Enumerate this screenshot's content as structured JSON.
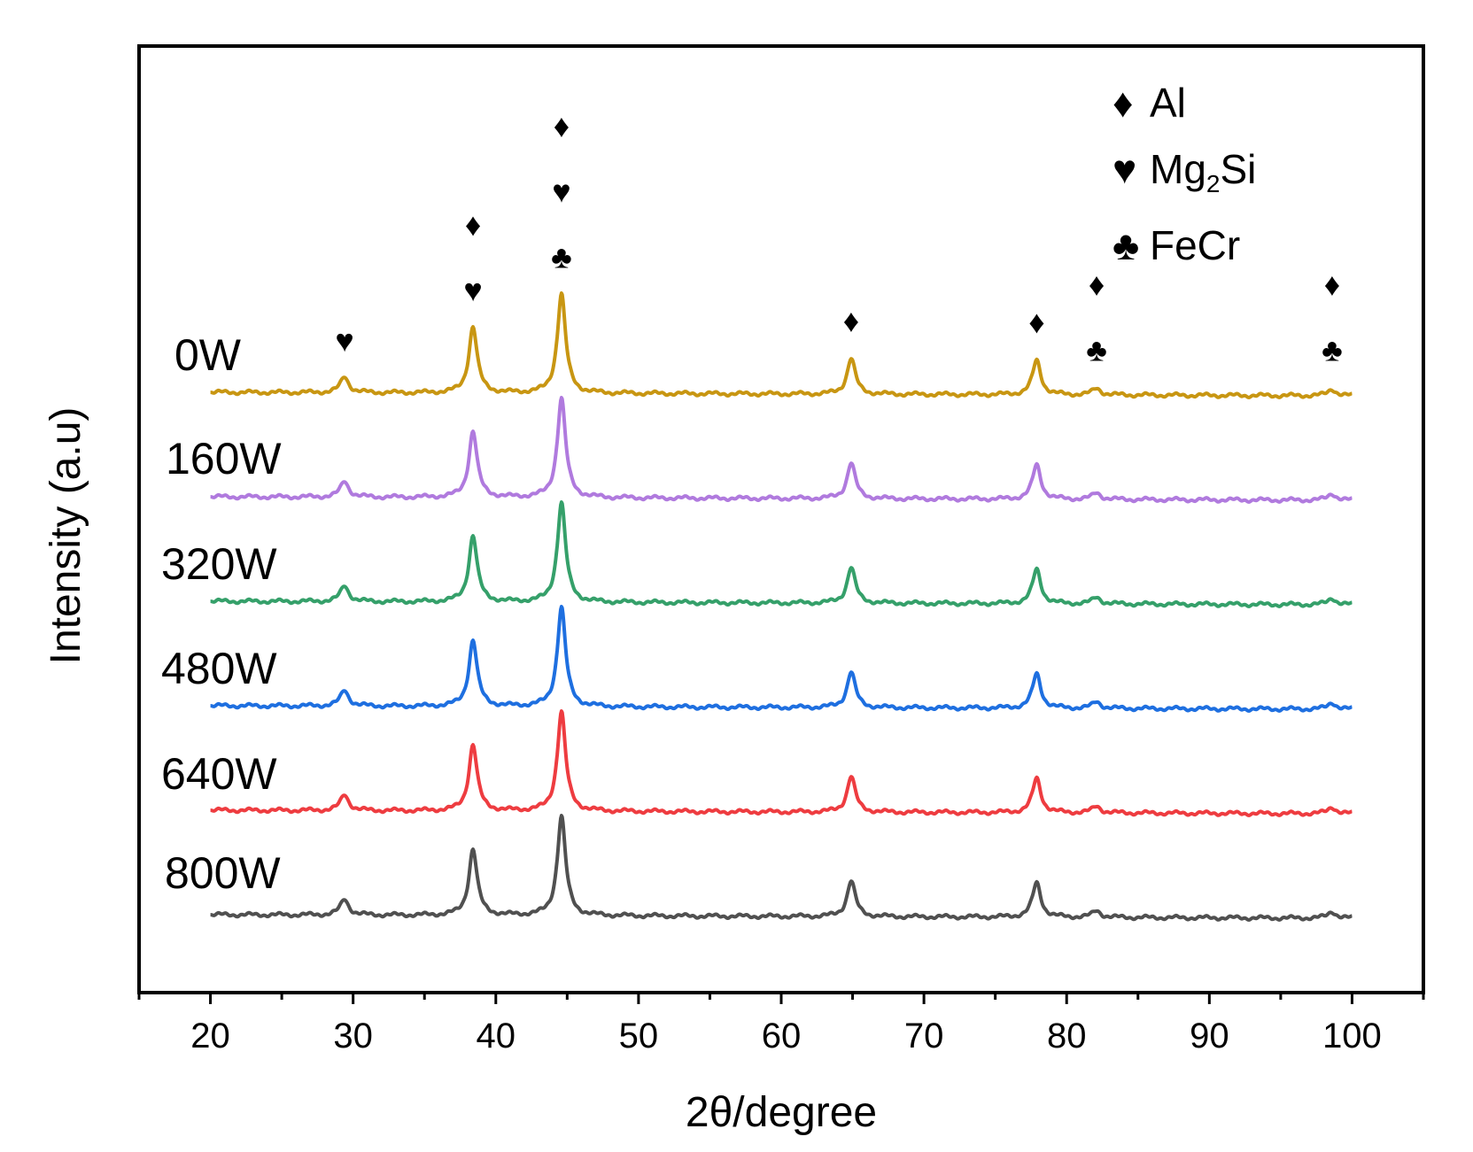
{
  "chart_data": {
    "type": "line",
    "title": "",
    "xlabel": "2θ/degree",
    "ylabel": "Intensity  (a.u)",
    "xlim": [
      15,
      105
    ],
    "x_ticks": [
      20,
      30,
      40,
      50,
      60,
      70,
      80,
      90,
      100
    ],
    "y_ticks_shown": false,
    "grid": false,
    "peaks": [
      {
        "pos": 29.4,
        "height": 0.12
      },
      {
        "pos": 38.4,
        "height": 0.5
      },
      {
        "pos": 44.6,
        "height": 0.75
      },
      {
        "pos": 64.9,
        "height": 0.27
      },
      {
        "pos": 77.9,
        "height": 0.26
      },
      {
        "pos": 82.1,
        "height": 0.05
      },
      {
        "pos": 98.6,
        "height": 0.05
      }
    ],
    "series": [
      {
        "name": "0W",
        "color": "#C89612",
        "offset": 5
      },
      {
        "name": "160W",
        "color": "#B07ADE",
        "offset": 4
      },
      {
        "name": "320W",
        "color": "#35A06A",
        "offset": 3
      },
      {
        "name": "480W",
        "color": "#1E6FE0",
        "offset": 2
      },
      {
        "name": "640W",
        "color": "#EE3C40",
        "offset": 1
      },
      {
        "name": "800W",
        "color": "#505050",
        "offset": 0
      }
    ],
    "phase_markers": [
      {
        "x": 29.4,
        "stack": [
          "heart"
        ]
      },
      {
        "x": 38.4,
        "stack": [
          "diamond",
          "heart"
        ]
      },
      {
        "x": 44.6,
        "stack": [
          "diamond",
          "heart",
          "club"
        ]
      },
      {
        "x": 64.9,
        "stack": [
          "diamond"
        ]
      },
      {
        "x": 77.9,
        "stack": [
          "diamond"
        ]
      },
      {
        "x": 82.1,
        "stack": [
          "diamond",
          "club"
        ]
      },
      {
        "x": 98.6,
        "stack": [
          "diamond",
          "club"
        ]
      }
    ],
    "legend": {
      "position": "top-right",
      "entries": [
        {
          "symbol": "diamond",
          "label": "Al"
        },
        {
          "symbol": "heart",
          "label": "Mg",
          "subscript": "2",
          "suffix": "Si"
        },
        {
          "symbol": "club",
          "label": "FeCr"
        }
      ]
    }
  },
  "symbols": {
    "diamond": "♦",
    "heart": "♥",
    "club": "♣"
  }
}
